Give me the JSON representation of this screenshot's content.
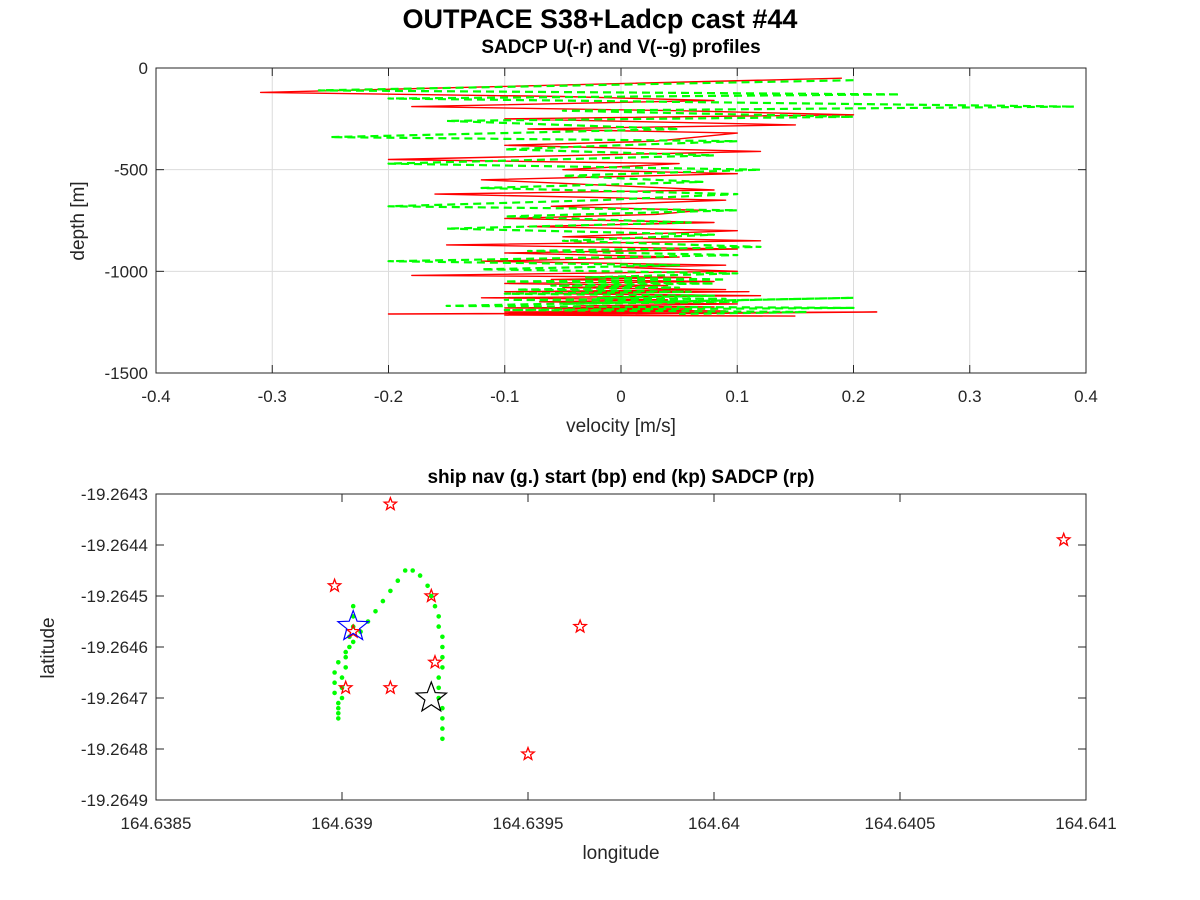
{
  "figure": {
    "title": "OUTPACE S38+Ladcp cast #44"
  },
  "chart_data": [
    {
      "type": "line",
      "title": "SADCP U(-r) and V(--g) profiles",
      "xlabel": "velocity [m/s]",
      "ylabel": "depth [m]",
      "xlim": [
        -0.4,
        0.4
      ],
      "ylim": [
        -1500,
        0
      ],
      "xticks": [
        -0.4,
        -0.3,
        -0.2,
        -0.1,
        0,
        0.1,
        0.2,
        0.3,
        0.4
      ],
      "xtick_labels": [
        "-0.4",
        "-0.3",
        "-0.2",
        "-0.1",
        "0",
        "0.1",
        "0.2",
        "0.3",
        "0.4"
      ],
      "yticks": [
        0,
        -500,
        -1000,
        -1500
      ],
      "ytick_labels": [
        "0",
        "-500",
        "-1000",
        "-1500"
      ],
      "grid": true,
      "series": [
        {
          "color": "#ff0000",
          "style": "solid",
          "x": [
            0.19,
            -0.31,
            -0.05,
            0.08,
            -0.18,
            0.05,
            0.2,
            -0.1,
            0.15,
            -0.08,
            0.1,
            0.03,
            -0.1,
            0.12,
            -0.2,
            0.05,
            -0.05,
            0.1,
            -0.12,
            0.0,
            0.08,
            -0.16,
            0.09,
            -0.06,
            0.07,
            0.03,
            -0.1,
            0.08,
            -0.08,
            0.1,
            -0.05,
            0.12,
            -0.15,
            0.1,
            -0.1,
            0.05,
            -0.12,
            0.09,
            0.0,
            0.1,
            -0.18,
            0.06,
            -0.06,
            0.08,
            -0.1,
            0.04,
            -0.05,
            0.09,
            -0.1,
            0.11,
            -0.06,
            0.12,
            -0.12,
            0.04,
            -0.07,
            0.1,
            -0.04,
            0.08,
            -0.1,
            0.06,
            -0.05,
            0.09,
            -0.1,
            0.09,
            -0.2,
            0.22,
            -0.1,
            0.15
          ],
          "y": [
            -50,
            -120,
            -140,
            -160,
            -190,
            -210,
            -230,
            -250,
            -280,
            -300,
            -320,
            -360,
            -380,
            -410,
            -450,
            -470,
            -500,
            -520,
            -550,
            -580,
            -600,
            -620,
            -650,
            -680,
            -700,
            -720,
            -740,
            -760,
            -780,
            -800,
            -830,
            -850,
            -870,
            -890,
            -910,
            -930,
            -950,
            -970,
            -980,
            -1000,
            -1020,
            -1030,
            -1040,
            -1050,
            -1060,
            -1070,
            -1080,
            -1090,
            -1100,
            -1100,
            -1110,
            -1120,
            -1130,
            -1140,
            -1150,
            -1160,
            -1170,
            -1175,
            -1180,
            -1185,
            -1190,
            -1195,
            -1200,
            -1205,
            -1210,
            -1200,
            -1215,
            -1220
          ]
        },
        {
          "color": "#00ff00",
          "style": "dashed",
          "x": [
            0.2,
            -0.26,
            0.24,
            -0.2,
            0.39,
            -0.05,
            0.2,
            -0.15,
            0.05,
            -0.25,
            0.1,
            -0.1,
            0.08,
            -0.2,
            0.12,
            -0.05,
            0.07,
            -0.12,
            0.1,
            -0.02,
            -0.2,
            0.1,
            -0.1,
            0.06,
            -0.15,
            0.08,
            -0.05,
            0.12,
            -0.08,
            0.1,
            -0.2,
            0.05,
            -0.12,
            0.1,
            -0.03,
            0.09,
            -0.1,
            0.08,
            -0.06,
            0.05,
            -0.09,
            0.06,
            -0.1,
            0.08,
            -0.02,
            0.09,
            -0.1,
            0.1,
            -0.05,
            0.2,
            -0.15,
            0.2,
            -0.1,
            0.16,
            0.05
          ],
          "y": [
            -60,
            -110,
            -130,
            -150,
            -190,
            -210,
            -240,
            -260,
            -300,
            -340,
            -360,
            -400,
            -430,
            -470,
            -500,
            -530,
            -560,
            -590,
            -620,
            -650,
            -680,
            -700,
            -730,
            -760,
            -790,
            -820,
            -850,
            -880,
            -900,
            -920,
            -950,
            -970,
            -990,
            -1010,
            -1030,
            -1040,
            -1050,
            -1060,
            -1070,
            -1080,
            -1090,
            -1100,
            -1110,
            -1120,
            -1130,
            -1135,
            -1140,
            -1150,
            -1160,
            -1130,
            -1170,
            -1180,
            -1190,
            -1200,
            -1210
          ]
        }
      ]
    },
    {
      "type": "scatter",
      "title": "ship nav (g.) start (bp) end (kp) SADCP (rp)",
      "xlabel": "longitude",
      "ylabel": "latitude",
      "xlim": [
        164.6385,
        164.641
      ],
      "ylim": [
        -19.2649,
        -19.2643
      ],
      "xticks": [
        164.6385,
        164.639,
        164.6395,
        164.64,
        164.6405,
        164.641
      ],
      "xtick_labels": [
        "164.6385",
        "164.639",
        "164.6395",
        "164.64",
        "164.6405",
        "164.641"
      ],
      "yticks": [
        -19.2643,
        -19.2644,
        -19.2645,
        -19.2646,
        -19.2647,
        -19.2648,
        -19.2649
      ],
      "ytick_labels": [
        "-19.2643",
        "-19.2644",
        "-19.2645",
        "-19.2646",
        "-19.2647",
        "-19.2648",
        "-19.2649"
      ],
      "grid": false,
      "ship_nav": {
        "color": "#00ff00",
        "x": [
          164.63903,
          164.63903,
          164.63903,
          164.63902,
          164.63902,
          164.63901,
          164.63901,
          164.639,
          164.639,
          164.639,
          164.63899,
          164.63899,
          164.63899,
          164.63899,
          164.63898,
          164.63898,
          164.63898,
          164.63899,
          164.63901,
          164.63903,
          164.63905,
          164.63907,
          164.63909,
          164.63911,
          164.63913,
          164.63915,
          164.63917,
          164.63919,
          164.63921,
          164.63923,
          164.63924,
          164.63925,
          164.63926,
          164.63926,
          164.63927,
          164.63927,
          164.63927,
          164.63927,
          164.63926,
          164.63926,
          164.63926,
          164.63927,
          164.63927,
          164.63927,
          164.63927
        ],
        "y": [
          -19.26452,
          -19.26454,
          -19.26456,
          -19.26458,
          -19.2646,
          -19.26462,
          -19.26464,
          -19.26466,
          -19.26468,
          -19.2647,
          -19.26472,
          -19.26474,
          -19.26473,
          -19.26471,
          -19.26469,
          -19.26467,
          -19.26465,
          -19.26463,
          -19.26461,
          -19.26459,
          -19.26457,
          -19.26455,
          -19.26453,
          -19.26451,
          -19.26449,
          -19.26447,
          -19.26445,
          -19.26445,
          -19.26446,
          -19.26448,
          -19.2645,
          -19.26452,
          -19.26454,
          -19.26456,
          -19.26458,
          -19.2646,
          -19.26462,
          -19.26464,
          -19.26466,
          -19.26468,
          -19.2647,
          -19.26472,
          -19.26474,
          -19.26476,
          -19.26478
        ]
      },
      "start": {
        "color": "#0000ff",
        "x": 164.63903,
        "y": -19.26456
      },
      "end": {
        "color": "#000000",
        "x": 164.63924,
        "y": -19.2647
      },
      "sadcp": {
        "color": "#ff0000",
        "x": [
          164.63913,
          164.64094,
          164.63898,
          164.63924,
          164.63903,
          164.63964,
          164.63925,
          164.63901,
          164.63913,
          164.6395
        ],
        "y": [
          -19.26432,
          -19.26439,
          -19.26448,
          -19.2645,
          -19.26457,
          -19.26456,
          -19.26463,
          -19.26468,
          -19.26468,
          -19.26481
        ]
      }
    }
  ]
}
